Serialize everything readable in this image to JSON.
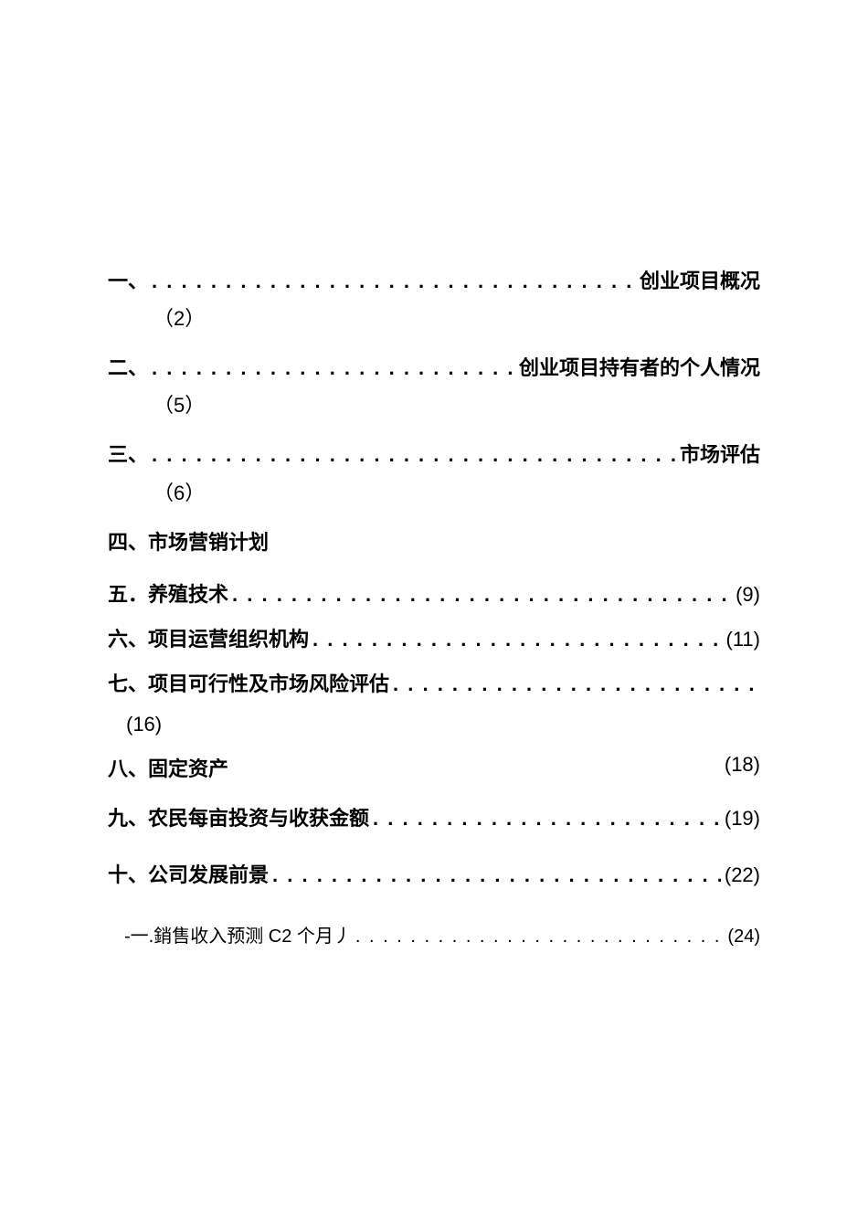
{
  "toc": {
    "dots_long": ". . . . . . . . . . . . . . . . . . . . . . . . . . . . . . . . . . . . . . . . . . . . . . . . . . . . . . . . . . . . . . . . . . . . . . . . . . . . . . . . . .",
    "entries": [
      {
        "label": "一、",
        "title": "创业项目概况",
        "page": "（2）"
      },
      {
        "label": "二、",
        "title": "创业项目持有者的个人情况",
        "page": "（5）"
      },
      {
        "label": "三、",
        "title": "市场评估",
        "page": "（6）"
      },
      {
        "label": "四、",
        "title": "市场营销计划",
        "page": ""
      },
      {
        "label": "五．",
        "title": "养殖技术",
        "page": "(9)"
      },
      {
        "label": "六、",
        "title": " 项目运营组织机构",
        "page": "(11)"
      },
      {
        "label": "七、",
        "title": "项目可行性及市场风险评估",
        "page": "(16)"
      },
      {
        "label": "八、",
        "title": "固定资产",
        "page": "(18)"
      },
      {
        "label": "九、",
        "title": "农民每亩投资与收获金额",
        "page": "(19)"
      },
      {
        "label": "十、",
        "title": "公司发展前景",
        "page": "(22)"
      },
      {
        "label": "-一.",
        "title": "銷售收入预测 C2 个月丿",
        "page": "(24)"
      }
    ]
  }
}
